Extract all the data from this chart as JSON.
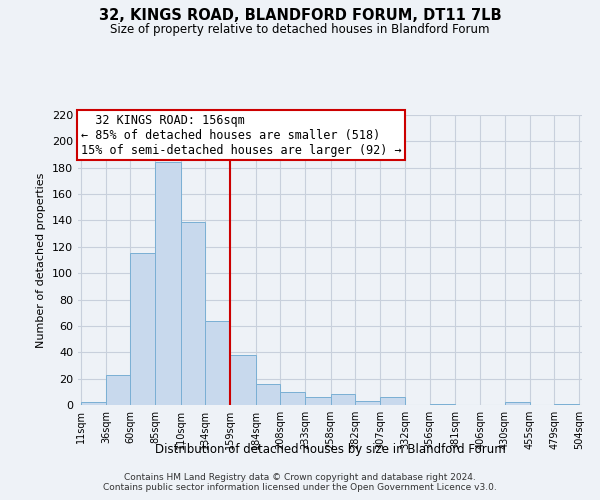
{
  "title": "32, KINGS ROAD, BLANDFORD FORUM, DT11 7LB",
  "subtitle": "Size of property relative to detached houses in Blandford Forum",
  "xlabel": "Distribution of detached houses by size in Blandford Forum",
  "ylabel": "Number of detached properties",
  "bar_color": "#c8d9ed",
  "bar_edge_color": "#7aafd4",
  "bins": [
    11,
    36,
    60,
    85,
    110,
    134,
    159,
    184,
    208,
    233,
    258,
    282,
    307,
    332,
    356,
    381,
    406,
    430,
    455,
    479,
    504
  ],
  "counts": [
    2,
    23,
    115,
    184,
    139,
    64,
    38,
    16,
    10,
    6,
    8,
    3,
    6,
    0,
    1,
    0,
    0,
    2,
    0,
    1
  ],
  "tick_labels": [
    "11sqm",
    "36sqm",
    "60sqm",
    "85sqm",
    "110sqm",
    "134sqm",
    "159sqm",
    "184sqm",
    "208sqm",
    "233sqm",
    "258sqm",
    "282sqm",
    "307sqm",
    "332sqm",
    "356sqm",
    "381sqm",
    "406sqm",
    "430sqm",
    "455sqm",
    "479sqm",
    "504sqm"
  ],
  "vline_x": 159,
  "vline_color": "#cc0000",
  "ylim": [
    0,
    220
  ],
  "yticks": [
    0,
    20,
    40,
    60,
    80,
    100,
    120,
    140,
    160,
    180,
    200,
    220
  ],
  "annotation_title": "32 KINGS ROAD: 156sqm",
  "annotation_line1": "← 85% of detached houses are smaller (518)",
  "annotation_line2": "15% of semi-detached houses are larger (92) →",
  "footer1": "Contains HM Land Registry data © Crown copyright and database right 2024.",
  "footer2": "Contains public sector information licensed under the Open Government Licence v3.0.",
  "background_color": "#eef2f7",
  "plot_bg_color": "#eef2f7",
  "grid_color": "#c8d0dc"
}
